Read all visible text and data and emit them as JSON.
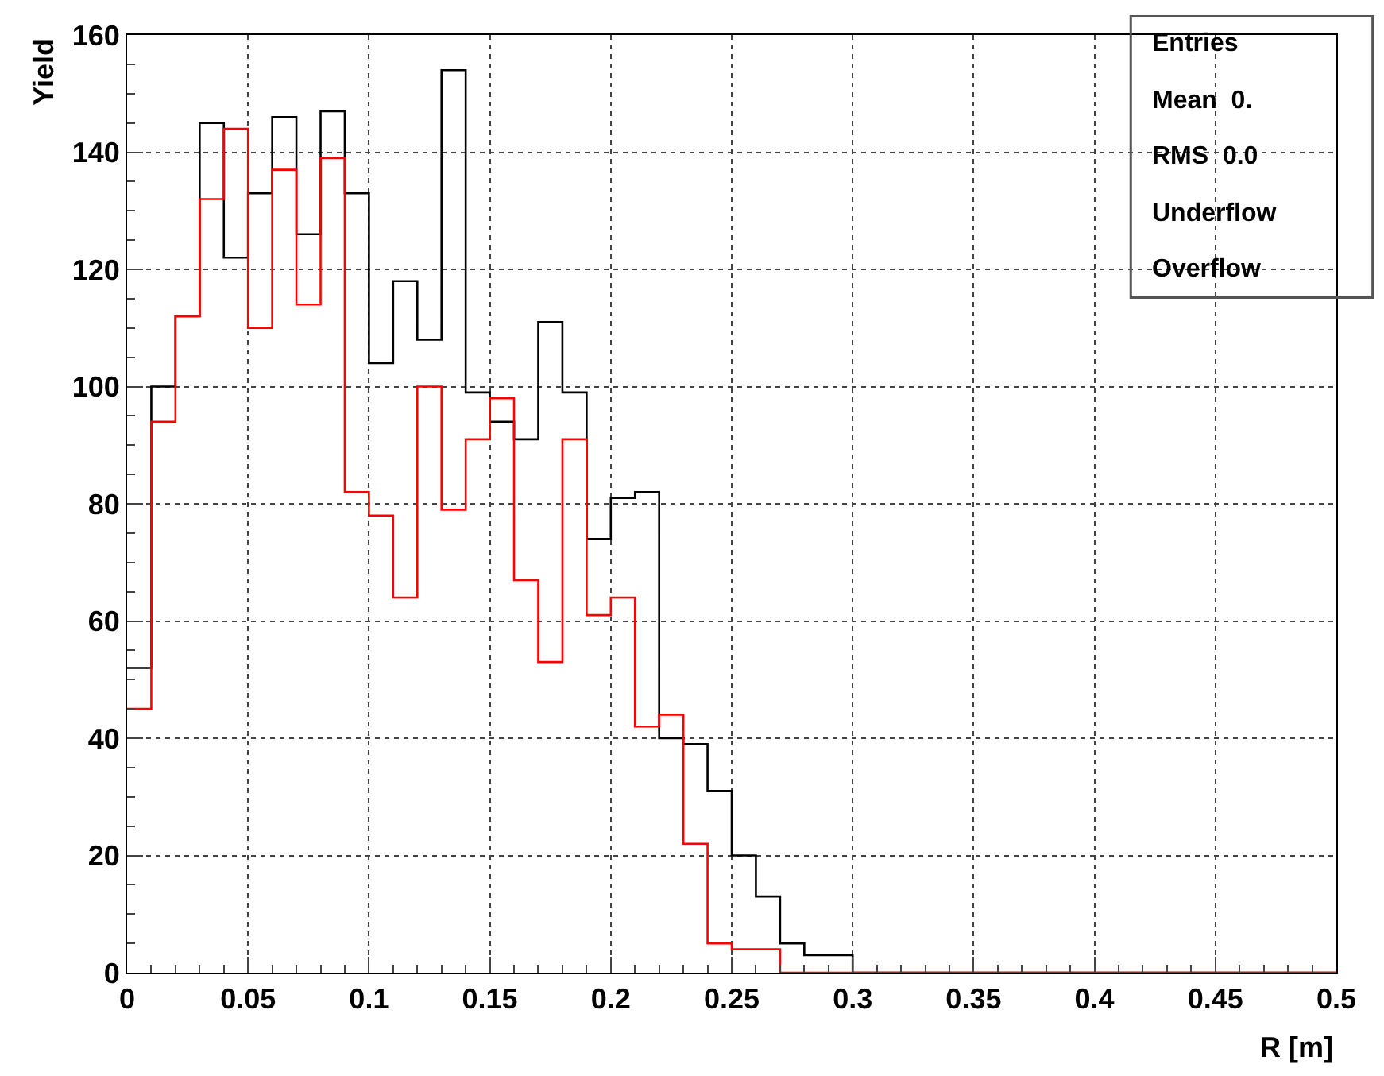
{
  "chart_data": {
    "type": "histogram",
    "xlabel": "R [m]",
    "ylabel": "Yield",
    "bins": [
      0,
      0.01,
      0.02,
      0.03,
      0.04,
      0.05,
      0.06,
      0.07,
      0.08,
      0.09,
      0.1,
      0.11,
      0.12,
      0.13,
      0.14,
      0.15,
      0.16,
      0.17,
      0.18,
      0.19,
      0.2,
      0.21,
      0.22,
      0.23,
      0.24,
      0.25,
      0.26,
      0.27,
      0.28,
      0.29,
      0.3,
      0.31,
      0.32,
      0.33,
      0.34,
      0.35,
      0.36,
      0.37,
      0.38,
      0.39,
      0.4,
      0.41,
      0.42,
      0.43,
      0.44,
      0.45,
      0.46,
      0.47,
      0.48,
      0.49,
      0.5
    ],
    "series": [
      {
        "color": "#000000",
        "values": [
          52,
          100,
          112,
          145,
          122,
          133,
          146,
          126,
          147,
          133,
          104,
          118,
          108,
          154,
          99,
          94,
          91,
          111,
          99,
          74,
          81,
          82,
          40,
          39,
          31,
          20,
          13,
          5,
          3,
          3,
          0,
          0,
          0,
          0,
          0,
          0,
          0,
          0,
          0,
          0,
          0,
          0,
          0,
          0,
          0,
          0,
          0,
          0,
          0,
          0
        ]
      },
      {
        "color": "#ff0000",
        "values": [
          45,
          94,
          112,
          132,
          144,
          110,
          137,
          114,
          139,
          82,
          78,
          64,
          100,
          79,
          91,
          98,
          67,
          53,
          91,
          61,
          64,
          42,
          44,
          22,
          5,
          4,
          4,
          0,
          0,
          0,
          0,
          0,
          0,
          0,
          0,
          0,
          0,
          0,
          0,
          0,
          0,
          0,
          0,
          0,
          0,
          0,
          0,
          0,
          0,
          0
        ]
      }
    ],
    "xlim": [
      0,
      0.5
    ],
    "ylim": [
      0,
      160
    ],
    "xticks": [
      0,
      0.05,
      0.1,
      0.15,
      0.2,
      0.25,
      0.3,
      0.35,
      0.4,
      0.45,
      0.5
    ],
    "yticks": [
      0,
      20,
      40,
      60,
      80,
      100,
      120,
      140,
      160
    ],
    "grid": true,
    "line_style": "solid",
    "marker": "none",
    "annotations": [
      "Entries",
      "Mean  0.",
      "RMS  0.0",
      "Underflow",
      "Overflow"
    ]
  }
}
